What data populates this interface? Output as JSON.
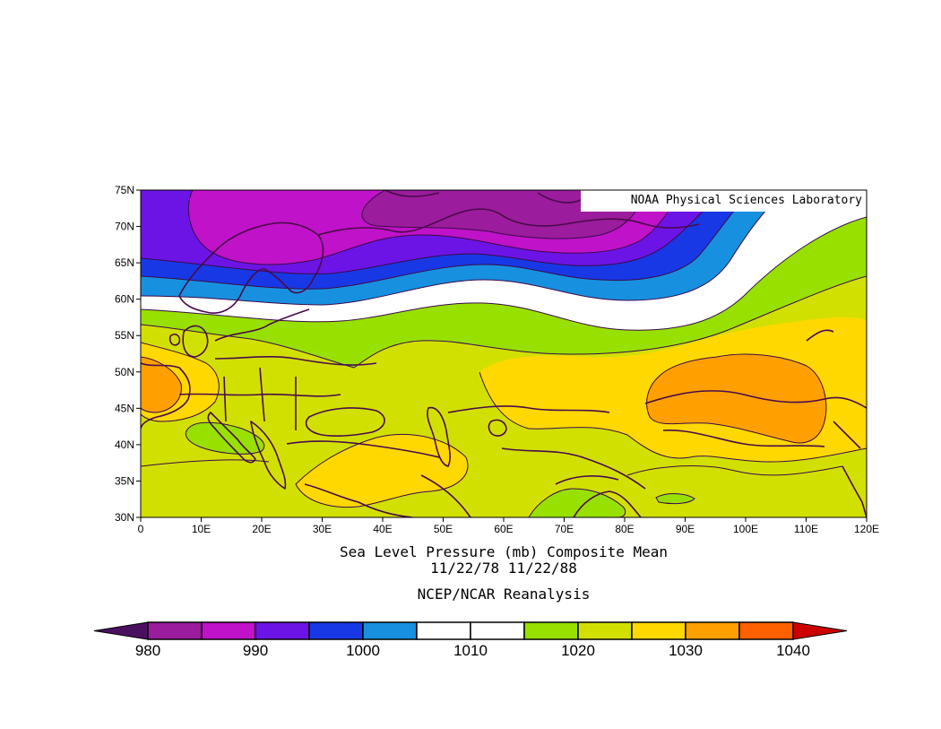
{
  "map": {
    "credit": "NOAA Physical Sciences Laboratory",
    "title": "Sea Level Pressure (mb) Composite Mean",
    "dates": "11/22/78 11/22/88",
    "source": "NCEP/NCAR Reanalysis",
    "units": "mb",
    "lon_range": [
      0,
      120
    ],
    "lat_range": [
      30,
      75
    ],
    "lat_ticks": [
      "75N",
      "70N",
      "65N",
      "60N",
      "55N",
      "50N",
      "45N",
      "40N",
      "35N",
      "30N"
    ],
    "lon_ticks": [
      "0",
      "10E",
      "20E",
      "30E",
      "40E",
      "50E",
      "60E",
      "70E",
      "80E",
      "90E",
      "100E",
      "110E",
      "120E"
    ]
  },
  "colorbar": {
    "levels": [
      980,
      985,
      990,
      995,
      1000,
      1005,
      1010,
      1015,
      1020,
      1025,
      1030,
      1035,
      1040
    ],
    "colors": [
      "#4a1060",
      "#9b1c9c",
      "#c012c8",
      "#6c14e6",
      "#1838e6",
      "#1890e0",
      "#ffffff",
      "#ffffff",
      "#98e000",
      "#d2e000",
      "#ffd800",
      "#ffa000",
      "#ff6000",
      "#cc0000"
    ],
    "labels": [
      "980",
      "990",
      "1000",
      "1010",
      "1020",
      "1030",
      "1040"
    ]
  }
}
